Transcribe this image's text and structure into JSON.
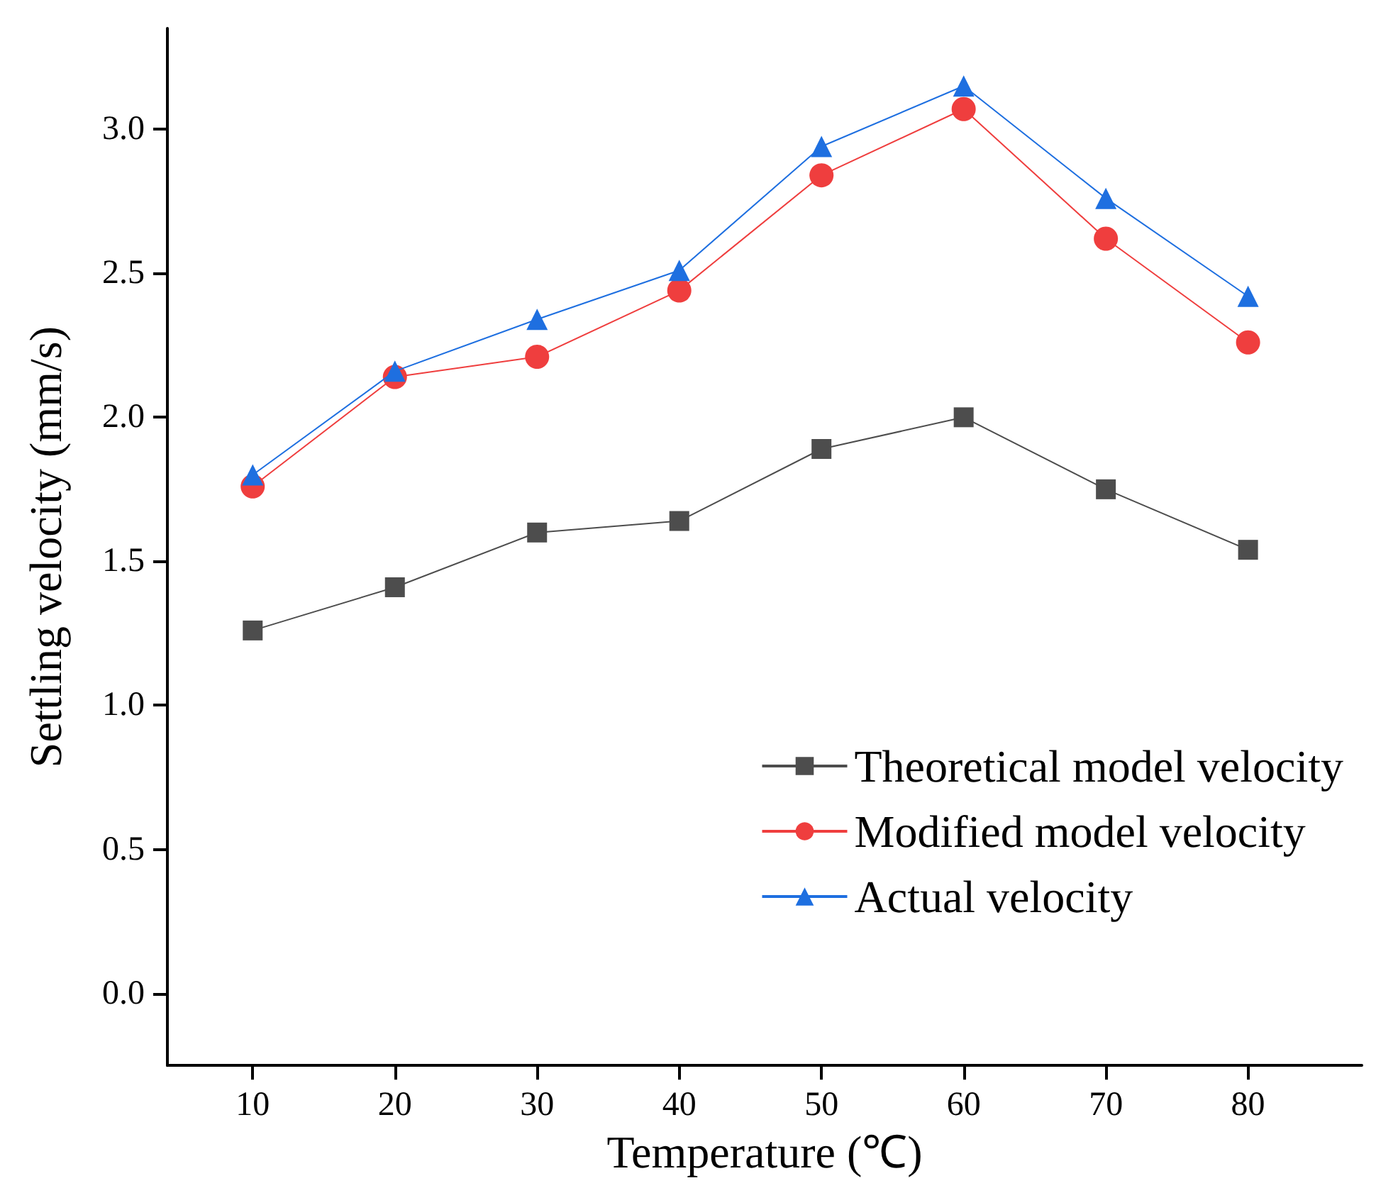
{
  "chart_data": {
    "type": "line",
    "xlabel": "Temperature (℃)",
    "ylabel": "Settling velocity (mm/s)",
    "x": [
      10,
      20,
      30,
      40,
      50,
      60,
      70,
      80
    ],
    "xlim": [
      4,
      88
    ],
    "xticks": [
      10,
      20,
      30,
      40,
      50,
      60,
      70,
      80
    ],
    "ylim": [
      -0.25,
      3.35
    ],
    "yticks": [
      {
        "value": 0,
        "label": "0.0"
      },
      {
        "value": 0.5,
        "label": "0.5"
      },
      {
        "value": 1,
        "label": "1.0"
      },
      {
        "value": 1.5,
        "label": "1.5"
      },
      {
        "value": 2,
        "label": "2.0"
      },
      {
        "value": 2.5,
        "label": "2.5"
      },
      {
        "value": 3,
        "label": "3.0"
      }
    ],
    "grid": false,
    "legend": "bottom right",
    "line_style": "solid",
    "series": [
      {
        "name": "Theoretical model velocity",
        "color": "#4d4d4d",
        "marker": "square",
        "values": [
          1.26,
          1.41,
          1.6,
          1.64,
          1.89,
          2.0,
          1.75,
          1.54
        ]
      },
      {
        "name": "Modified model velocity",
        "color": "#ef3e3e",
        "marker": "circle",
        "values": [
          1.76,
          2.14,
          2.21,
          2.44,
          2.84,
          3.07,
          2.62,
          2.26
        ]
      },
      {
        "name": "Actual velocity",
        "color": "#1e6fe0",
        "marker": "triangle",
        "values": [
          1.8,
          2.16,
          2.34,
          2.51,
          2.94,
          3.15,
          2.76,
          2.42
        ]
      }
    ]
  }
}
